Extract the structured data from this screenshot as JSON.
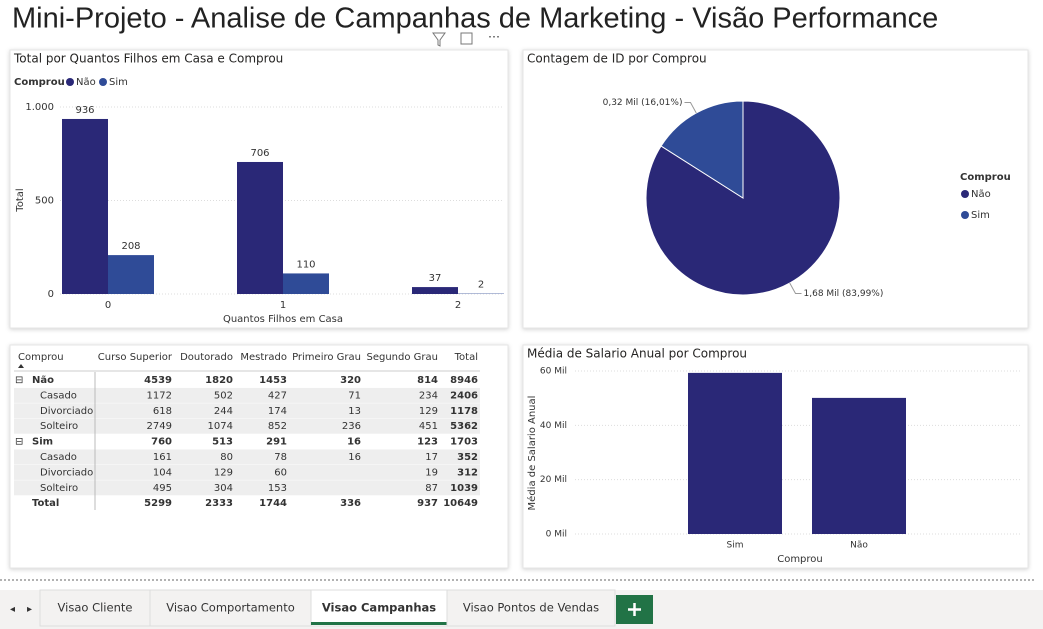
{
  "title": "Mini-Projeto - Analise de Campanhas de Marketing - Visão Performance",
  "bar_chart": {
    "type": "bar",
    "title": "Total por Quantos Filhos em Casa e Comprou",
    "legend_title": "Comprou",
    "x_label": "Quantos Filhos em Casa",
    "y_label": "Total",
    "categories": [
      "0",
      "1",
      "2"
    ],
    "series": [
      {
        "name": "Não",
        "color": "#2a2877",
        "values": [
          936,
          706,
          37
        ]
      },
      {
        "name": "Sim",
        "color": "#2f4b97",
        "values": [
          208,
          110,
          2
        ]
      }
    ],
    "ylim": [
      0,
      1000
    ],
    "yticks": [
      0,
      500,
      {
        "value": 1000,
        "label": "1.000"
      }
    ],
    "grid": true
  },
  "pie_chart": {
    "type": "pie",
    "title": "Contagem de ID por Comprou",
    "legend_title": "Comprou",
    "categories": [
      "Não",
      "Sim"
    ],
    "values": [
      1680,
      320
    ],
    "value_labels": [
      "1,68 Mil (83,99%)",
      "0,32 Mil (16,01%)"
    ],
    "colors": [
      "#2a2877",
      "#2f4b97"
    ]
  },
  "table": {
    "columns": [
      "Comprou",
      "Curso Superior",
      "Doutorado",
      "Mestrado",
      "Primeiro Grau",
      "Segundo Grau",
      "Total"
    ],
    "rows": [
      {
        "label": "Não",
        "level": 0,
        "expanded": true,
        "values": [
          4539,
          1820,
          1453,
          320,
          814,
          8946
        ]
      },
      {
        "label": "Casado",
        "level": 1,
        "values": [
          1172,
          502,
          427,
          71,
          234,
          2406
        ]
      },
      {
        "label": "Divorciado",
        "level": 1,
        "values": [
          618,
          244,
          174,
          13,
          129,
          1178
        ]
      },
      {
        "label": "Solteiro",
        "level": 1,
        "values": [
          2749,
          1074,
          852,
          236,
          451,
          5362
        ]
      },
      {
        "label": "Sim",
        "level": 0,
        "expanded": true,
        "values": [
          760,
          513,
          291,
          16,
          123,
          1703
        ]
      },
      {
        "label": "Casado",
        "level": 1,
        "values": [
          161,
          80,
          78,
          16,
          17,
          352
        ]
      },
      {
        "label": "Divorciado",
        "level": 1,
        "values": [
          104,
          129,
          60,
          null,
          19,
          312
        ]
      },
      {
        "label": "Solteiro",
        "level": 1,
        "values": [
          495,
          304,
          153,
          null,
          87,
          1039
        ]
      },
      {
        "label": "Total",
        "level": 0,
        "values": [
          5299,
          2333,
          1744,
          336,
          937,
          10649
        ]
      }
    ]
  },
  "salary_chart": {
    "type": "bar",
    "title": "Média de Salario Anual por Comprou",
    "x_label": "Comprou",
    "y_label": "Média de Salario Anual",
    "categories": [
      "Sim",
      "Não"
    ],
    "values": [
      59300,
      50100
    ],
    "color": "#2a2877",
    "ylim": [
      0,
      60000
    ],
    "yticks": [
      {
        "value": 0,
        "label": "0 Mil"
      },
      {
        "value": 20000,
        "label": "20 Mil"
      },
      {
        "value": 40000,
        "label": "40 Mil"
      },
      {
        "value": 60000,
        "label": "60 Mil"
      }
    ],
    "grid": true
  },
  "tabs": {
    "items": [
      "Visao Cliente",
      "Visao Comportamento",
      "Visao Campanhas",
      "Visao Pontos de Vendas"
    ],
    "active": 2
  }
}
